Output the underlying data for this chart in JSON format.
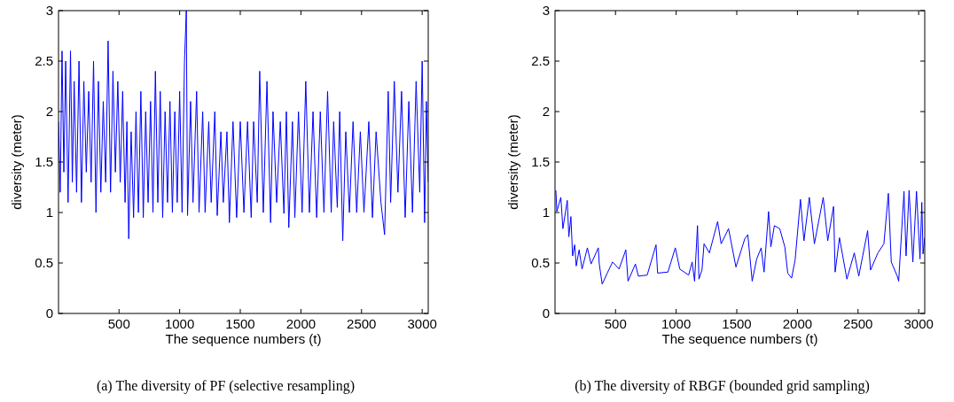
{
  "chart_data": [
    {
      "type": "line",
      "xlabel": "The sequence numbers (t)",
      "ylabel": "diversity (meter)",
      "annotations": [
        "(a)  The diversity of PF (selective resampling)"
      ],
      "xlim": [
        1,
        3050
      ],
      "ylim": [
        0,
        3
      ],
      "xticks": [
        500,
        1000,
        1500,
        2000,
        2500,
        3000
      ],
      "yticks": [
        0,
        0.5,
        1,
        1.5,
        2,
        2.5,
        3
      ],
      "grid": false,
      "line_style": "solid",
      "series": [
        {
          "color": "#0000ff",
          "x": [
            1,
            15,
            30,
            45,
            60,
            80,
            100,
            115,
            130,
            150,
            170,
            190,
            210,
            230,
            250,
            270,
            290,
            310,
            330,
            350,
            370,
            390,
            410,
            430,
            450,
            470,
            490,
            510,
            530,
            550,
            565,
            580,
            600,
            620,
            640,
            660,
            680,
            700,
            720,
            740,
            760,
            780,
            800,
            820,
            840,
            860,
            880,
            900,
            920,
            940,
            960,
            980,
            1000,
            1020,
            1040,
            1055,
            1065,
            1090,
            1110,
            1140,
            1160,
            1190,
            1210,
            1240,
            1260,
            1290,
            1310,
            1340,
            1360,
            1390,
            1410,
            1440,
            1470,
            1500,
            1530,
            1560,
            1590,
            1610,
            1640,
            1660,
            1690,
            1720,
            1750,
            1770,
            1800,
            1830,
            1860,
            1880,
            1900,
            1930,
            1950,
            1980,
            2010,
            2040,
            2070,
            2100,
            2130,
            2160,
            2190,
            2220,
            2250,
            2270,
            2300,
            2320,
            2345,
            2370,
            2400,
            2430,
            2460,
            2490,
            2520,
            2560,
            2590,
            2620,
            2660,
            2690,
            2720,
            2740,
            2770,
            2800,
            2830,
            2860,
            2890,
            2920,
            2950,
            2980,
            3000,
            3020,
            3035,
            3050
          ],
          "values": [
            1.9,
            1.2,
            2.6,
            1.4,
            2.5,
            1.1,
            2.6,
            1.3,
            2.3,
            1.2,
            2.5,
            1.1,
            2.3,
            1.4,
            2.2,
            1.3,
            2.5,
            1.0,
            2.3,
            1.2,
            2.1,
            1.3,
            2.7,
            1.2,
            2.4,
            1.4,
            2.3,
            1.3,
            2.2,
            1.1,
            1.9,
            0.74,
            1.8,
            0.95,
            2.0,
            1.0,
            2.2,
            0.95,
            2.0,
            1.1,
            2.1,
            1.0,
            2.4,
            1.1,
            2.2,
            0.95,
            2.0,
            1.1,
            2.1,
            1.0,
            2.0,
            1.1,
            2.2,
            1.0,
            2.5,
            3.0,
            0.97,
            2.1,
            1.1,
            2.2,
            1.0,
            2.0,
            1.0,
            1.9,
            1.1,
            2.0,
            0.97,
            1.8,
            1.1,
            1.8,
            0.9,
            1.9,
            0.95,
            1.9,
            1.0,
            1.9,
            0.95,
            1.9,
            1.1,
            2.4,
            1.0,
            2.3,
            0.9,
            2.0,
            1.1,
            1.9,
            0.99,
            2.0,
            0.85,
            1.9,
            0.95,
            2.0,
            1.0,
            2.3,
            1.0,
            2.0,
            0.95,
            2.0,
            1.0,
            2.2,
            1.0,
            1.9,
            1.05,
            2.0,
            0.72,
            1.8,
            1.0,
            1.9,
            1.0,
            1.8,
            1.0,
            1.9,
            0.95,
            1.8,
            1.1,
            0.78,
            2.2,
            1.1,
            2.3,
            1.2,
            2.2,
            0.95,
            2.1,
            1.0,
            2.3,
            1.2,
            2.5,
            0.9,
            2.1,
            1.3
          ]
        }
      ]
    },
    {
      "type": "line",
      "xlabel": "The sequence numbers (t)",
      "ylabel": "diversity (meter)",
      "annotations": [
        "(b)  The diversity of RBGF (bounded grid sampling)"
      ],
      "xlim": [
        1,
        3050
      ],
      "ylim": [
        0,
        3
      ],
      "xticks": [
        500,
        1000,
        1500,
        2000,
        2500,
        3000
      ],
      "yticks": [
        0,
        0.5,
        1,
        1.5,
        2,
        2.5,
        3
      ],
      "grid": false,
      "line_style": "solid",
      "series": [
        {
          "color": "#0000ff",
          "x": [
            8,
            16,
            49,
            66,
            102,
            115,
            132,
            146,
            163,
            176,
            200,
            224,
            268,
            298,
            358,
            366,
            390,
            432,
            476,
            529,
            585,
            603,
            664,
            688,
            761,
            834,
            847,
            932,
            993,
            1030,
            1103,
            1132,
            1152,
            1176,
            1188,
            1213,
            1230,
            1274,
            1342,
            1371,
            1432,
            1493,
            1566,
            1591,
            1627,
            1664,
            1701,
            1725,
            1762,
            1781,
            1810,
            1854,
            1896,
            1920,
            1952,
            1981,
            2025,
            2054,
            2098,
            2140,
            2213,
            2250,
            2298,
            2311,
            2347,
            2408,
            2469,
            2506,
            2579,
            2603,
            2664,
            2713,
            2750,
            2774,
            2823,
            2835,
            2879,
            2896,
            2921,
            2952,
            2982,
            3011,
            3026,
            3036,
            3050
          ],
          "values": [
            1.22,
            1.01,
            1.15,
            0.84,
            1.12,
            0.76,
            0.96,
            0.57,
            0.68,
            0.47,
            0.63,
            0.44,
            0.65,
            0.49,
            0.65,
            0.49,
            0.29,
            0.4,
            0.51,
            0.44,
            0.63,
            0.32,
            0.49,
            0.37,
            0.38,
            0.68,
            0.4,
            0.41,
            0.65,
            0.44,
            0.38,
            0.51,
            0.32,
            0.87,
            0.34,
            0.43,
            0.69,
            0.6,
            0.91,
            0.69,
            0.84,
            0.46,
            0.74,
            0.78,
            0.32,
            0.54,
            0.65,
            0.41,
            1.01,
            0.66,
            0.87,
            0.84,
            0.66,
            0.4,
            0.35,
            0.53,
            1.13,
            0.72,
            1.15,
            0.69,
            1.15,
            0.72,
            1.06,
            0.41,
            0.75,
            0.34,
            0.6,
            0.37,
            0.82,
            0.43,
            0.6,
            0.69,
            1.19,
            0.51,
            0.37,
            0.32,
            1.21,
            0.57,
            1.22,
            0.51,
            1.21,
            0.54,
            1.1,
            0.59,
            0.75
          ]
        }
      ]
    }
  ]
}
